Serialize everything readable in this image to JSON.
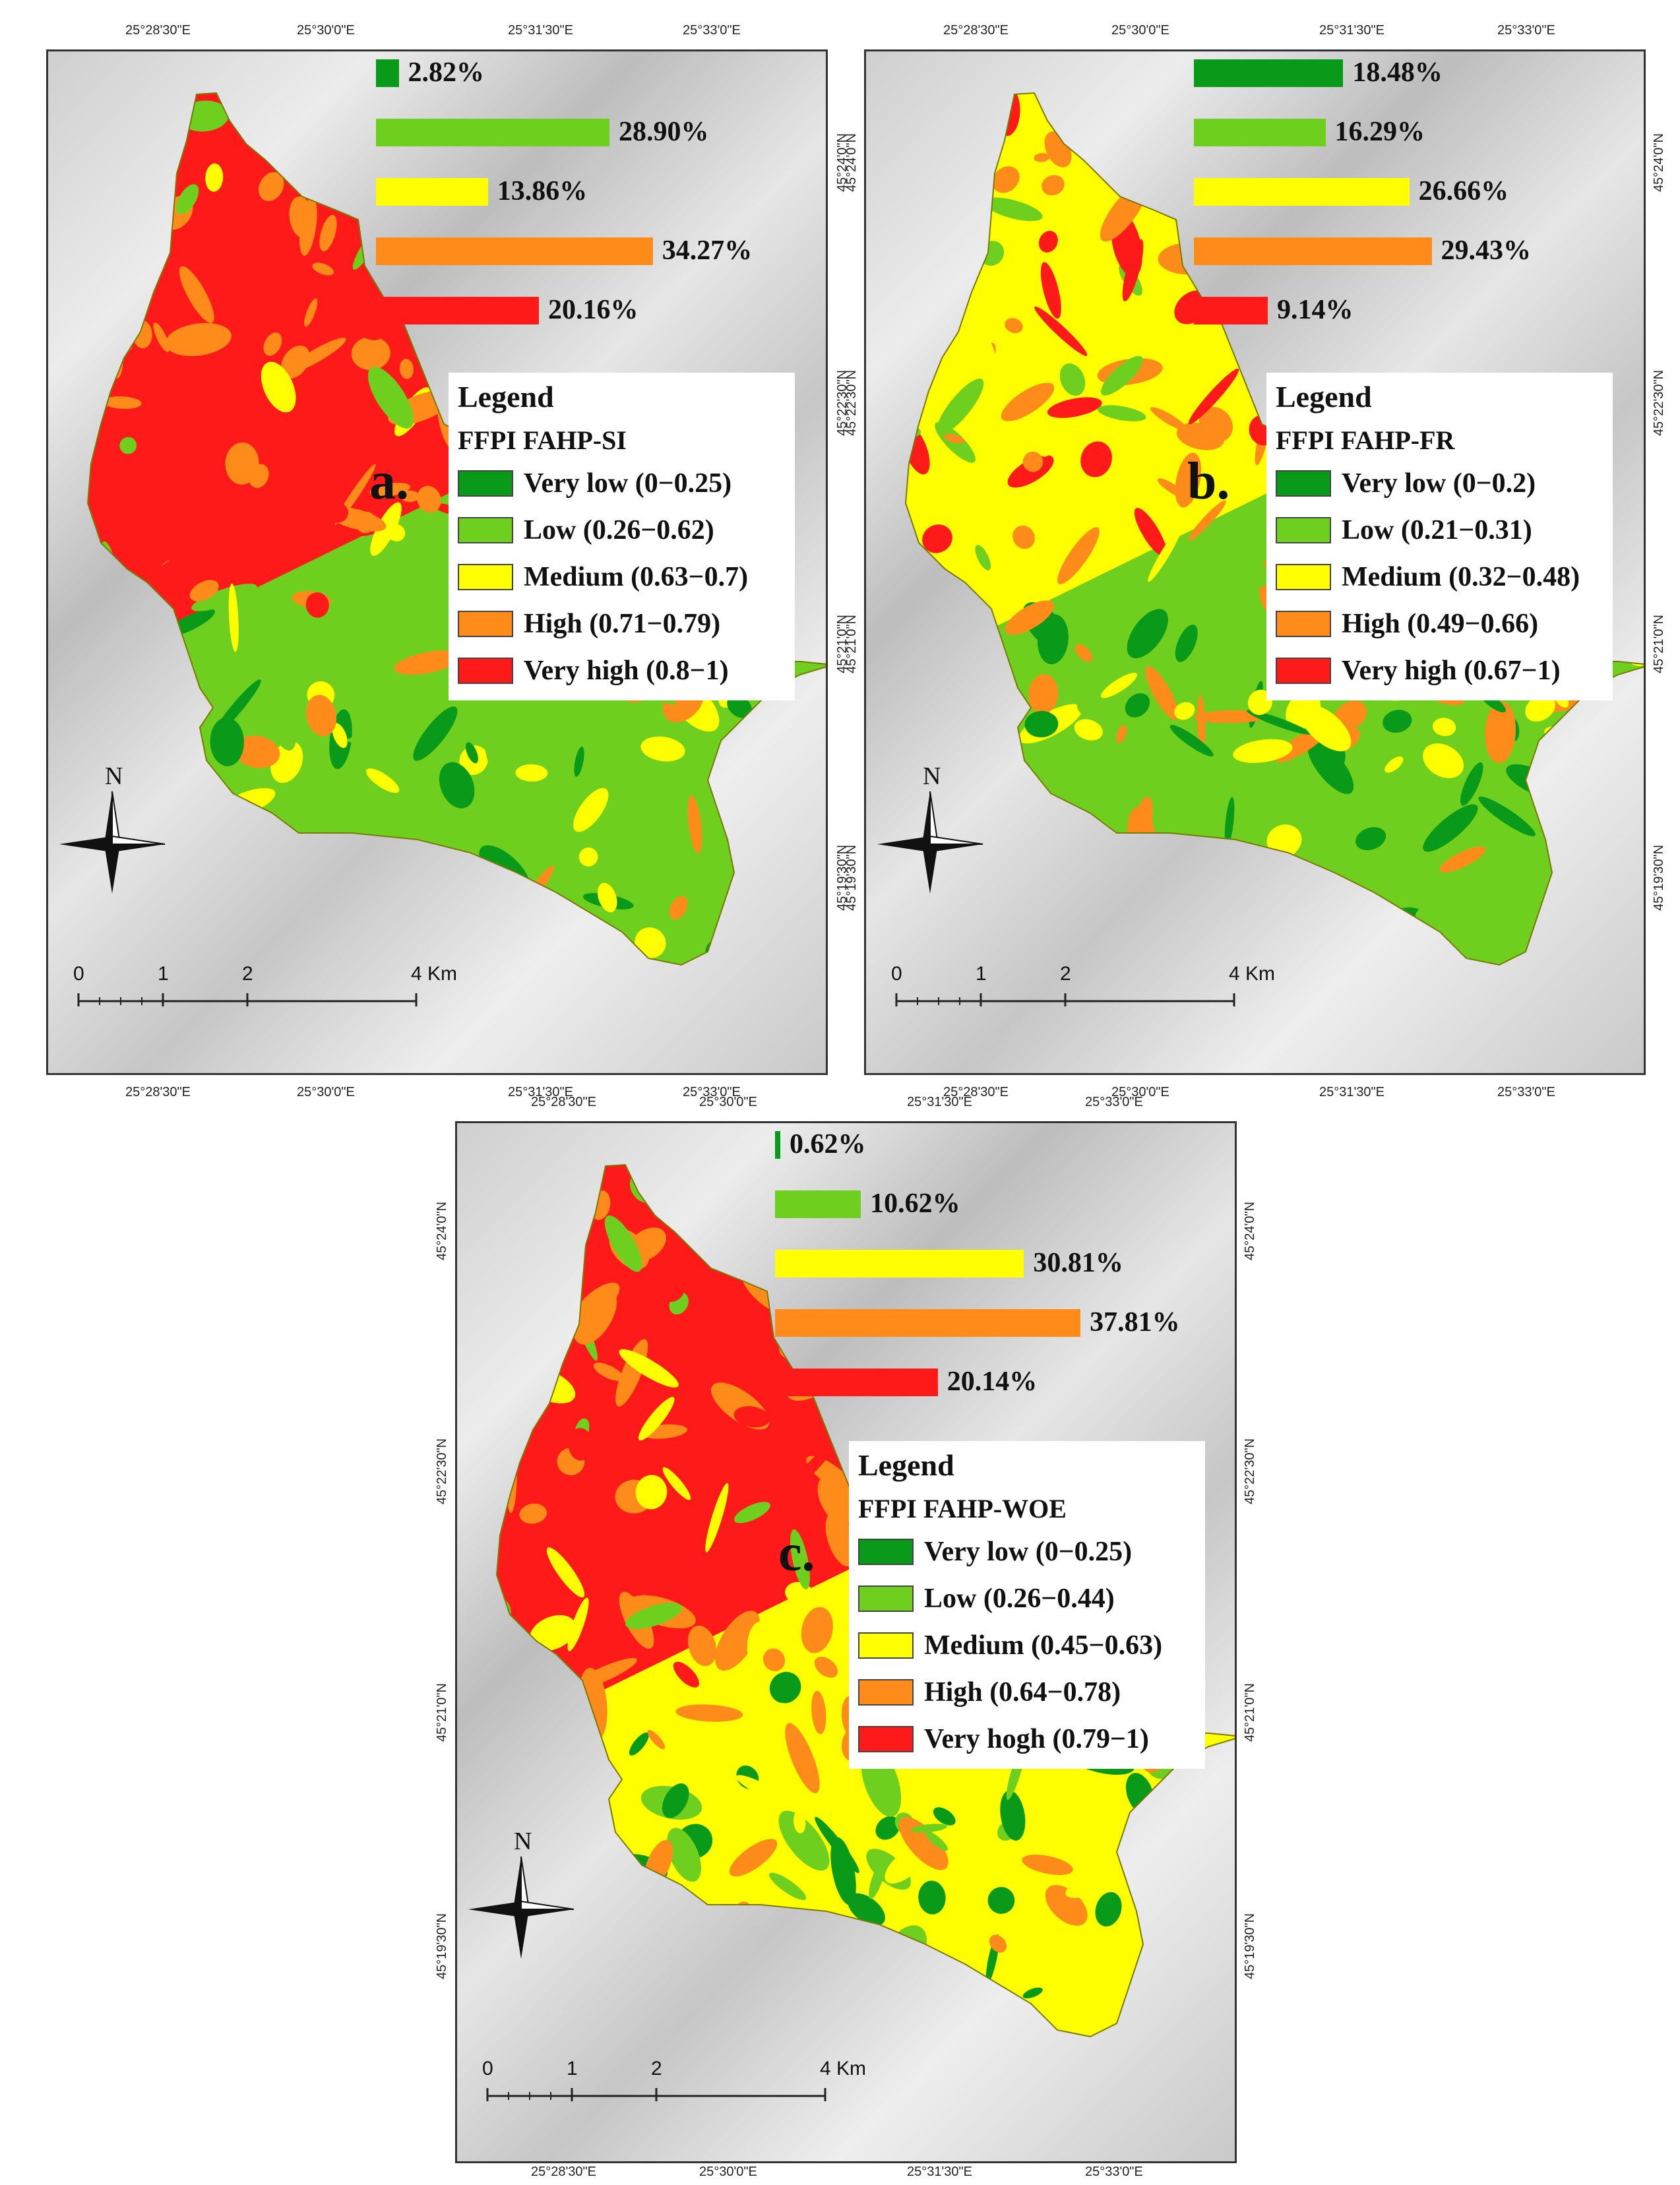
{
  "colors": {
    "very_low": "#0a9a1a",
    "low": "#6fcf1f",
    "medium": "#ffff00",
    "high": "#ff8c1a",
    "very_high": "#ff1a1a"
  },
  "panels": [
    {
      "letter": "a.",
      "legend_title": "Legend",
      "legend_subtitle": "FFPI FAHP-SI",
      "classes": [
        {
          "label": "Very low (0−0.25)",
          "color": "#0a9a1a"
        },
        {
          "label": "Low (0.26−0.62)",
          "color": "#6fcf1f"
        },
        {
          "label": "Medium (0.63−0.7)",
          "color": "#ffff00"
        },
        {
          "label": "High (0.71−0.79)",
          "color": "#ff8c1a"
        },
        {
          "label": "Very high (0.8−1)",
          "color": "#ff1a1a"
        }
      ],
      "bars": [
        {
          "value": 2.82,
          "label": "2.82%",
          "color": "#0a9a1a"
        },
        {
          "value": 28.9,
          "label": "28.90%",
          "color": "#6fcf1f"
        },
        {
          "value": 13.86,
          "label": "13.86%",
          "color": "#ffff00"
        },
        {
          "value": 34.27,
          "label": "34.27%",
          "color": "#ff8c1a"
        },
        {
          "value": 20.16,
          "label": "20.16%",
          "color": "#ff1a1a"
        }
      ],
      "ticks_top": [
        "25°28'30\"E",
        "25°30'0\"E",
        "25°31'30\"E",
        "25°33'0\"E"
      ],
      "ticks_bottom": [
        "25°28'30\"E",
        "25°30'0\"E",
        "25°31'30\"E",
        "25°33'0\"E"
      ],
      "ticks_right": [
        "45°24'0\"N",
        "45°22'30\"N",
        "45°21'0\"N",
        "45°19'30\"N"
      ],
      "ticks_left": []
    },
    {
      "letter": "b.",
      "legend_title": "Legend",
      "legend_subtitle": "FFPI FAHP-FR",
      "classes": [
        {
          "label": "Very low (0−0.2)",
          "color": "#0a9a1a"
        },
        {
          "label": "Low (0.21−0.31)",
          "color": "#6fcf1f"
        },
        {
          "label": "Medium (0.32−0.48)",
          "color": "#ffff00"
        },
        {
          "label": "High (0.49−0.66)",
          "color": "#ff8c1a"
        },
        {
          "label": "Very high (0.67−1)",
          "color": "#ff1a1a"
        }
      ],
      "bars": [
        {
          "value": 18.48,
          "label": "18.48%",
          "color": "#0a9a1a"
        },
        {
          "value": 16.29,
          "label": "16.29%",
          "color": "#6fcf1f"
        },
        {
          "value": 26.66,
          "label": "26.66%",
          "color": "#ffff00"
        },
        {
          "value": 29.43,
          "label": "29.43%",
          "color": "#ff8c1a"
        },
        {
          "value": 9.14,
          "label": "9.14%",
          "color": "#ff1a1a"
        }
      ],
      "ticks_top": [
        "25°28'30\"E",
        "25°30'0\"E",
        "25°31'30\"E",
        "25°33'0\"E"
      ],
      "ticks_bottom": [
        "25°28'30\"E",
        "25°30'0\"E",
        "25°31'30\"E",
        "25°33'0\"E"
      ],
      "ticks_right": [
        "45°24'0\"N",
        "45°22'30\"N",
        "45°21'0\"N",
        "45°19'30\"N"
      ],
      "ticks_left": [
        "45°24'0\"N",
        "45°22'30\"N",
        "45°21'0\"N",
        "45°19'30\"N"
      ]
    },
    {
      "letter": "c.",
      "legend_title": "Legend",
      "legend_subtitle": "FFPI FAHP-WOE",
      "classes": [
        {
          "label": "Very low (0−0.25)",
          "color": "#0a9a1a"
        },
        {
          "label": "Low (0.26−0.44)",
          "color": "#6fcf1f"
        },
        {
          "label": "Medium (0.45−0.63)",
          "color": "#ffff00"
        },
        {
          "label": "High (0.64−0.78)",
          "color": "#ff8c1a"
        },
        {
          "label": "Very hogh (0.79−1)",
          "color": "#ff1a1a"
        }
      ],
      "bars": [
        {
          "value": 0.62,
          "label": "0.62%",
          "color": "#0a9a1a"
        },
        {
          "value": 10.62,
          "label": "10.62%",
          "color": "#6fcf1f"
        },
        {
          "value": 30.81,
          "label": "30.81%",
          "color": "#ffff00"
        },
        {
          "value": 37.81,
          "label": "37.81%",
          "color": "#ff8c1a"
        },
        {
          "value": 20.14,
          "label": "20.14%",
          "color": "#ff1a1a"
        }
      ],
      "ticks_top": [
        "25°28'30\"E",
        "25°30'0\"E",
        "25°31'30\"E",
        "25°33'0\"E"
      ],
      "ticks_bottom": [
        "25°28'30\"E",
        "25°30'0\"E",
        "25°31'30\"E",
        "25°33'0\"E"
      ],
      "ticks_right": [
        "45°24'0\"N",
        "45°22'30\"N",
        "45°21'0\"N",
        "45°19'30\"N"
      ],
      "ticks_left": [
        "45°24'0\"N",
        "45°22'30\"N",
        "45°21'0\"N",
        "45°19'30\"N"
      ]
    }
  ],
  "north_label": "N",
  "scale": {
    "labels": [
      "0",
      "1",
      "2",
      "4 Km"
    ]
  }
}
